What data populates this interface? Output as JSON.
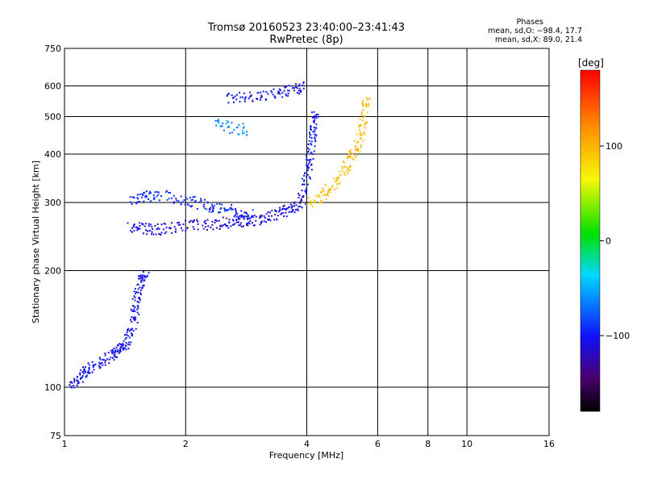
{
  "header": {
    "title_line1": "Tromsø 20160523 23:40:00–23:41:43",
    "title_line2": "RwPretec (8p)"
  },
  "phases": {
    "title": "Phases",
    "line_o": "mean, sd,O: −98.4, 17.7",
    "line_x": "mean, sd,X: 89.0, 21.4"
  },
  "chart_data": {
    "type": "scatter",
    "xlabel": "Frequency [MHz]",
    "ylabel": "Stationary phase Virtual Height [km]",
    "x_scale": "log",
    "y_scale": "log",
    "xlim": [
      1,
      16
    ],
    "ylim": [
      75,
      750
    ],
    "x_ticks": [
      1,
      2,
      4,
      6,
      8,
      10,
      16
    ],
    "x_tick_labels": [
      "1",
      "2",
      "4",
      "6",
      "8",
      "10",
      "16"
    ],
    "y_ticks": [
      75,
      100,
      200,
      300,
      400,
      500,
      600,
      750
    ],
    "y_tick_labels": [
      "75",
      "100",
      "200",
      "300",
      "400",
      "500",
      "600",
      "750"
    ],
    "grid": true,
    "colorbar": {
      "label": "[deg]",
      "range": [
        -180,
        180
      ],
      "ticks": [
        -100,
        0,
        100
      ],
      "tick_labels": [
        "−100",
        "0",
        "100"
      ]
    },
    "series": [
      {
        "kind": "trace",
        "color_value": -105,
        "points": [
          [
            1.03,
            102
          ],
          [
            1.08,
            106
          ],
          [
            1.12,
            110
          ],
          [
            1.18,
            114
          ],
          [
            1.25,
            118
          ],
          [
            1.32,
            122
          ],
          [
            1.38,
            126
          ],
          [
            1.42,
            130
          ],
          [
            1.45,
            140
          ],
          [
            1.48,
            152
          ],
          [
            1.5,
            165
          ],
          [
            1.52,
            178
          ],
          [
            1.55,
            190
          ],
          [
            1.58,
            200
          ]
        ]
      },
      {
        "kind": "trace",
        "color_value": -110,
        "points": [
          [
            1.45,
            262
          ],
          [
            1.55,
            258
          ],
          [
            1.65,
            256
          ],
          [
            1.8,
            258
          ],
          [
            2.0,
            262
          ],
          [
            2.2,
            264
          ],
          [
            2.4,
            266
          ],
          [
            2.6,
            268
          ],
          [
            2.8,
            270
          ],
          [
            3.0,
            272
          ],
          [
            3.2,
            276
          ],
          [
            3.4,
            282
          ],
          [
            3.6,
            290
          ],
          [
            3.8,
            300
          ],
          [
            3.95,
            315
          ]
        ]
      },
      {
        "kind": "trace",
        "color_value": -95,
        "points": [
          [
            1.45,
            300
          ],
          [
            1.55,
            310
          ],
          [
            1.7,
            315
          ],
          [
            1.9,
            308
          ],
          [
            2.1,
            300
          ],
          [
            2.3,
            295
          ],
          [
            2.5,
            290
          ],
          [
            2.7,
            285
          ],
          [
            2.9,
            280
          ]
        ]
      },
      {
        "kind": "trace",
        "color_value": -100,
        "points": [
          [
            3.9,
            330
          ],
          [
            4.0,
            360
          ],
          [
            4.05,
            400
          ],
          [
            4.1,
            440
          ],
          [
            4.15,
            480
          ],
          [
            4.2,
            520
          ]
        ]
      },
      {
        "kind": "trace",
        "color_value": 95,
        "points": [
          [
            4.0,
            300
          ],
          [
            4.3,
            310
          ],
          [
            4.6,
            330
          ],
          [
            4.9,
            360
          ],
          [
            5.1,
            390
          ],
          [
            5.3,
            420
          ],
          [
            5.45,
            460
          ],
          [
            5.55,
            510
          ],
          [
            5.6,
            560
          ]
        ]
      },
      {
        "kind": "trace",
        "color_value": -105,
        "points": [
          [
            2.5,
            560
          ],
          [
            2.8,
            565
          ],
          [
            3.1,
            570
          ],
          [
            3.4,
            578
          ],
          [
            3.7,
            588
          ],
          [
            3.95,
            600
          ]
        ]
      },
      {
        "kind": "trace",
        "color_value": -60,
        "points": [
          [
            2.4,
            480
          ],
          [
            2.6,
            470
          ],
          [
            2.8,
            465
          ]
        ]
      }
    ]
  }
}
